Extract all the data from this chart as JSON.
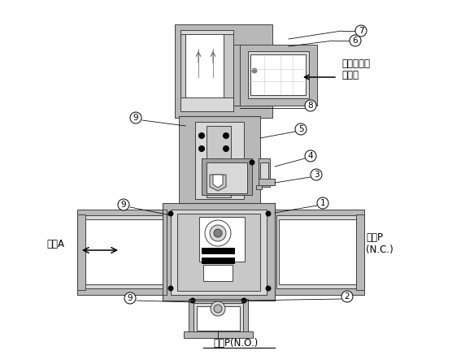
{
  "bg_color": "#ffffff",
  "gray_body": "#b8b8b8",
  "gray_dark": "#808080",
  "gray_light": "#d8d8d8",
  "gray_mid": "#a0a0a0",
  "gray_inner": "#c8c8c8",
  "outline": "#404040",
  "black": "#000000",
  "white": "#ffffff",
  "labels": {
    "pilot_port_line1": "パイロット",
    "pilot_port_line2": "ボート",
    "port_a": "ボーA",
    "port_p_nc_line1": "ボーP",
    "port_p_nc_line2": "(N.C.)",
    "port_p_no": "ボーP(N.O.)",
    "num1": "1",
    "num2": "2",
    "num3": "3",
    "num4": "4",
    "num5": "5",
    "num6": "6",
    "num7": "7",
    "num8": "8",
    "num9": "9"
  },
  "font_size_label": 8.5,
  "font_size_num": 7.5
}
